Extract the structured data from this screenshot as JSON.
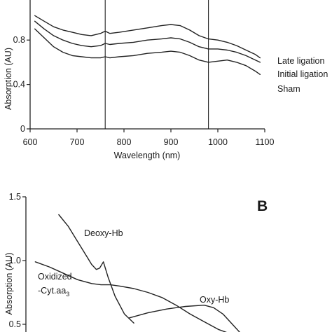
{
  "chart_data": [
    {
      "type": "line",
      "panel": "A",
      "xlabel": "Wavelength (nm)",
      "ylabel": "Absorption (AU)",
      "xlim": [
        600,
        1100
      ],
      "ylim": [
        0,
        1.0
      ],
      "x_ticks": [
        "600",
        "700",
        "800",
        "900",
        "1000",
        "1100"
      ],
      "y_ticks": [
        "0",
        "0.4",
        "0.8"
      ],
      "markers": [
        760,
        980
      ],
      "series": [
        {
          "name": "Late ligation",
          "x": [
            610,
            630,
            650,
            670,
            690,
            710,
            730,
            750,
            760,
            770,
            790,
            820,
            850,
            880,
            900,
            920,
            940,
            960,
            980,
            1000,
            1020,
            1040,
            1060,
            1080,
            1090
          ],
          "y": [
            1.02,
            0.97,
            0.92,
            0.89,
            0.87,
            0.85,
            0.84,
            0.86,
            0.88,
            0.86,
            0.87,
            0.89,
            0.91,
            0.93,
            0.94,
            0.93,
            0.89,
            0.84,
            0.81,
            0.8,
            0.78,
            0.75,
            0.71,
            0.67,
            0.64
          ]
        },
        {
          "name": "Initial ligation",
          "x": [
            610,
            630,
            650,
            670,
            690,
            710,
            730,
            750,
            760,
            770,
            790,
            820,
            850,
            880,
            900,
            920,
            940,
            960,
            980,
            1000,
            1020,
            1040,
            1060,
            1080,
            1090
          ],
          "y": [
            0.97,
            0.9,
            0.84,
            0.8,
            0.77,
            0.75,
            0.74,
            0.75,
            0.77,
            0.76,
            0.77,
            0.78,
            0.8,
            0.81,
            0.82,
            0.81,
            0.78,
            0.74,
            0.72,
            0.72,
            0.71,
            0.69,
            0.66,
            0.62,
            0.6
          ]
        },
        {
          "name": "Sham",
          "x": [
            610,
            630,
            650,
            670,
            690,
            710,
            730,
            750,
            760,
            770,
            790,
            820,
            850,
            880,
            900,
            920,
            940,
            960,
            980,
            1000,
            1020,
            1040,
            1060,
            1080,
            1090
          ],
          "y": [
            0.9,
            0.82,
            0.74,
            0.69,
            0.66,
            0.65,
            0.64,
            0.64,
            0.65,
            0.64,
            0.65,
            0.66,
            0.68,
            0.69,
            0.7,
            0.69,
            0.66,
            0.62,
            0.6,
            0.61,
            0.62,
            0.6,
            0.57,
            0.52,
            0.49
          ]
        }
      ]
    },
    {
      "type": "line",
      "panel": "B",
      "ylabel": "Absorption (AU)",
      "xlim": [
        600,
        1100
      ],
      "ylim": [
        0.5,
        1.5
      ],
      "y_ticks": [
        "0.5",
        "1.0",
        "1.5"
      ],
      "series": [
        {
          "name": "Deoxy-Hb",
          "x": [
            670,
            690,
            710,
            730,
            740,
            750,
            757,
            765,
            775,
            790,
            810,
            830
          ],
          "y": [
            1.36,
            1.27,
            1.15,
            1.03,
            0.97,
            0.93,
            0.94,
            0.99,
            0.87,
            0.72,
            0.58,
            0.51
          ]
        },
        {
          "name": "Oxidized-Cyt.aa3",
          "x": [
            620,
            650,
            680,
            710,
            740,
            760,
            780,
            800,
            830,
            860,
            890,
            920,
            950,
            980,
            1010,
            1040,
            1070,
            1090
          ],
          "y": [
            0.99,
            0.95,
            0.9,
            0.85,
            0.82,
            0.81,
            0.81,
            0.8,
            0.78,
            0.75,
            0.71,
            0.65,
            0.58,
            0.52,
            0.46,
            0.42,
            0.38,
            0.36
          ]
        },
        {
          "name": "Oxy-Hb",
          "x": [
            820,
            860,
            900,
            940,
            980,
            1000,
            1020,
            1040,
            1060
          ],
          "y": [
            0.55,
            0.59,
            0.62,
            0.64,
            0.65,
            0.63,
            0.58,
            0.5,
            0.42
          ]
        }
      ]
    }
  ],
  "labels": {
    "a_ylabel": "Absorption (AU)",
    "a_xlabel": "Wavelength (nm)",
    "late": "Late ligation",
    "initial": "Initial ligation",
    "sham": "Sham",
    "b_letter": "B",
    "b_ylabel": "Absorption (AU)",
    "deoxy": "Deoxy-Hb",
    "ox_line1": "Oxidized",
    "ox_line2": "-Cyt.aa",
    "ox_sub": "3",
    "oxy": "Oxy-Hb"
  }
}
